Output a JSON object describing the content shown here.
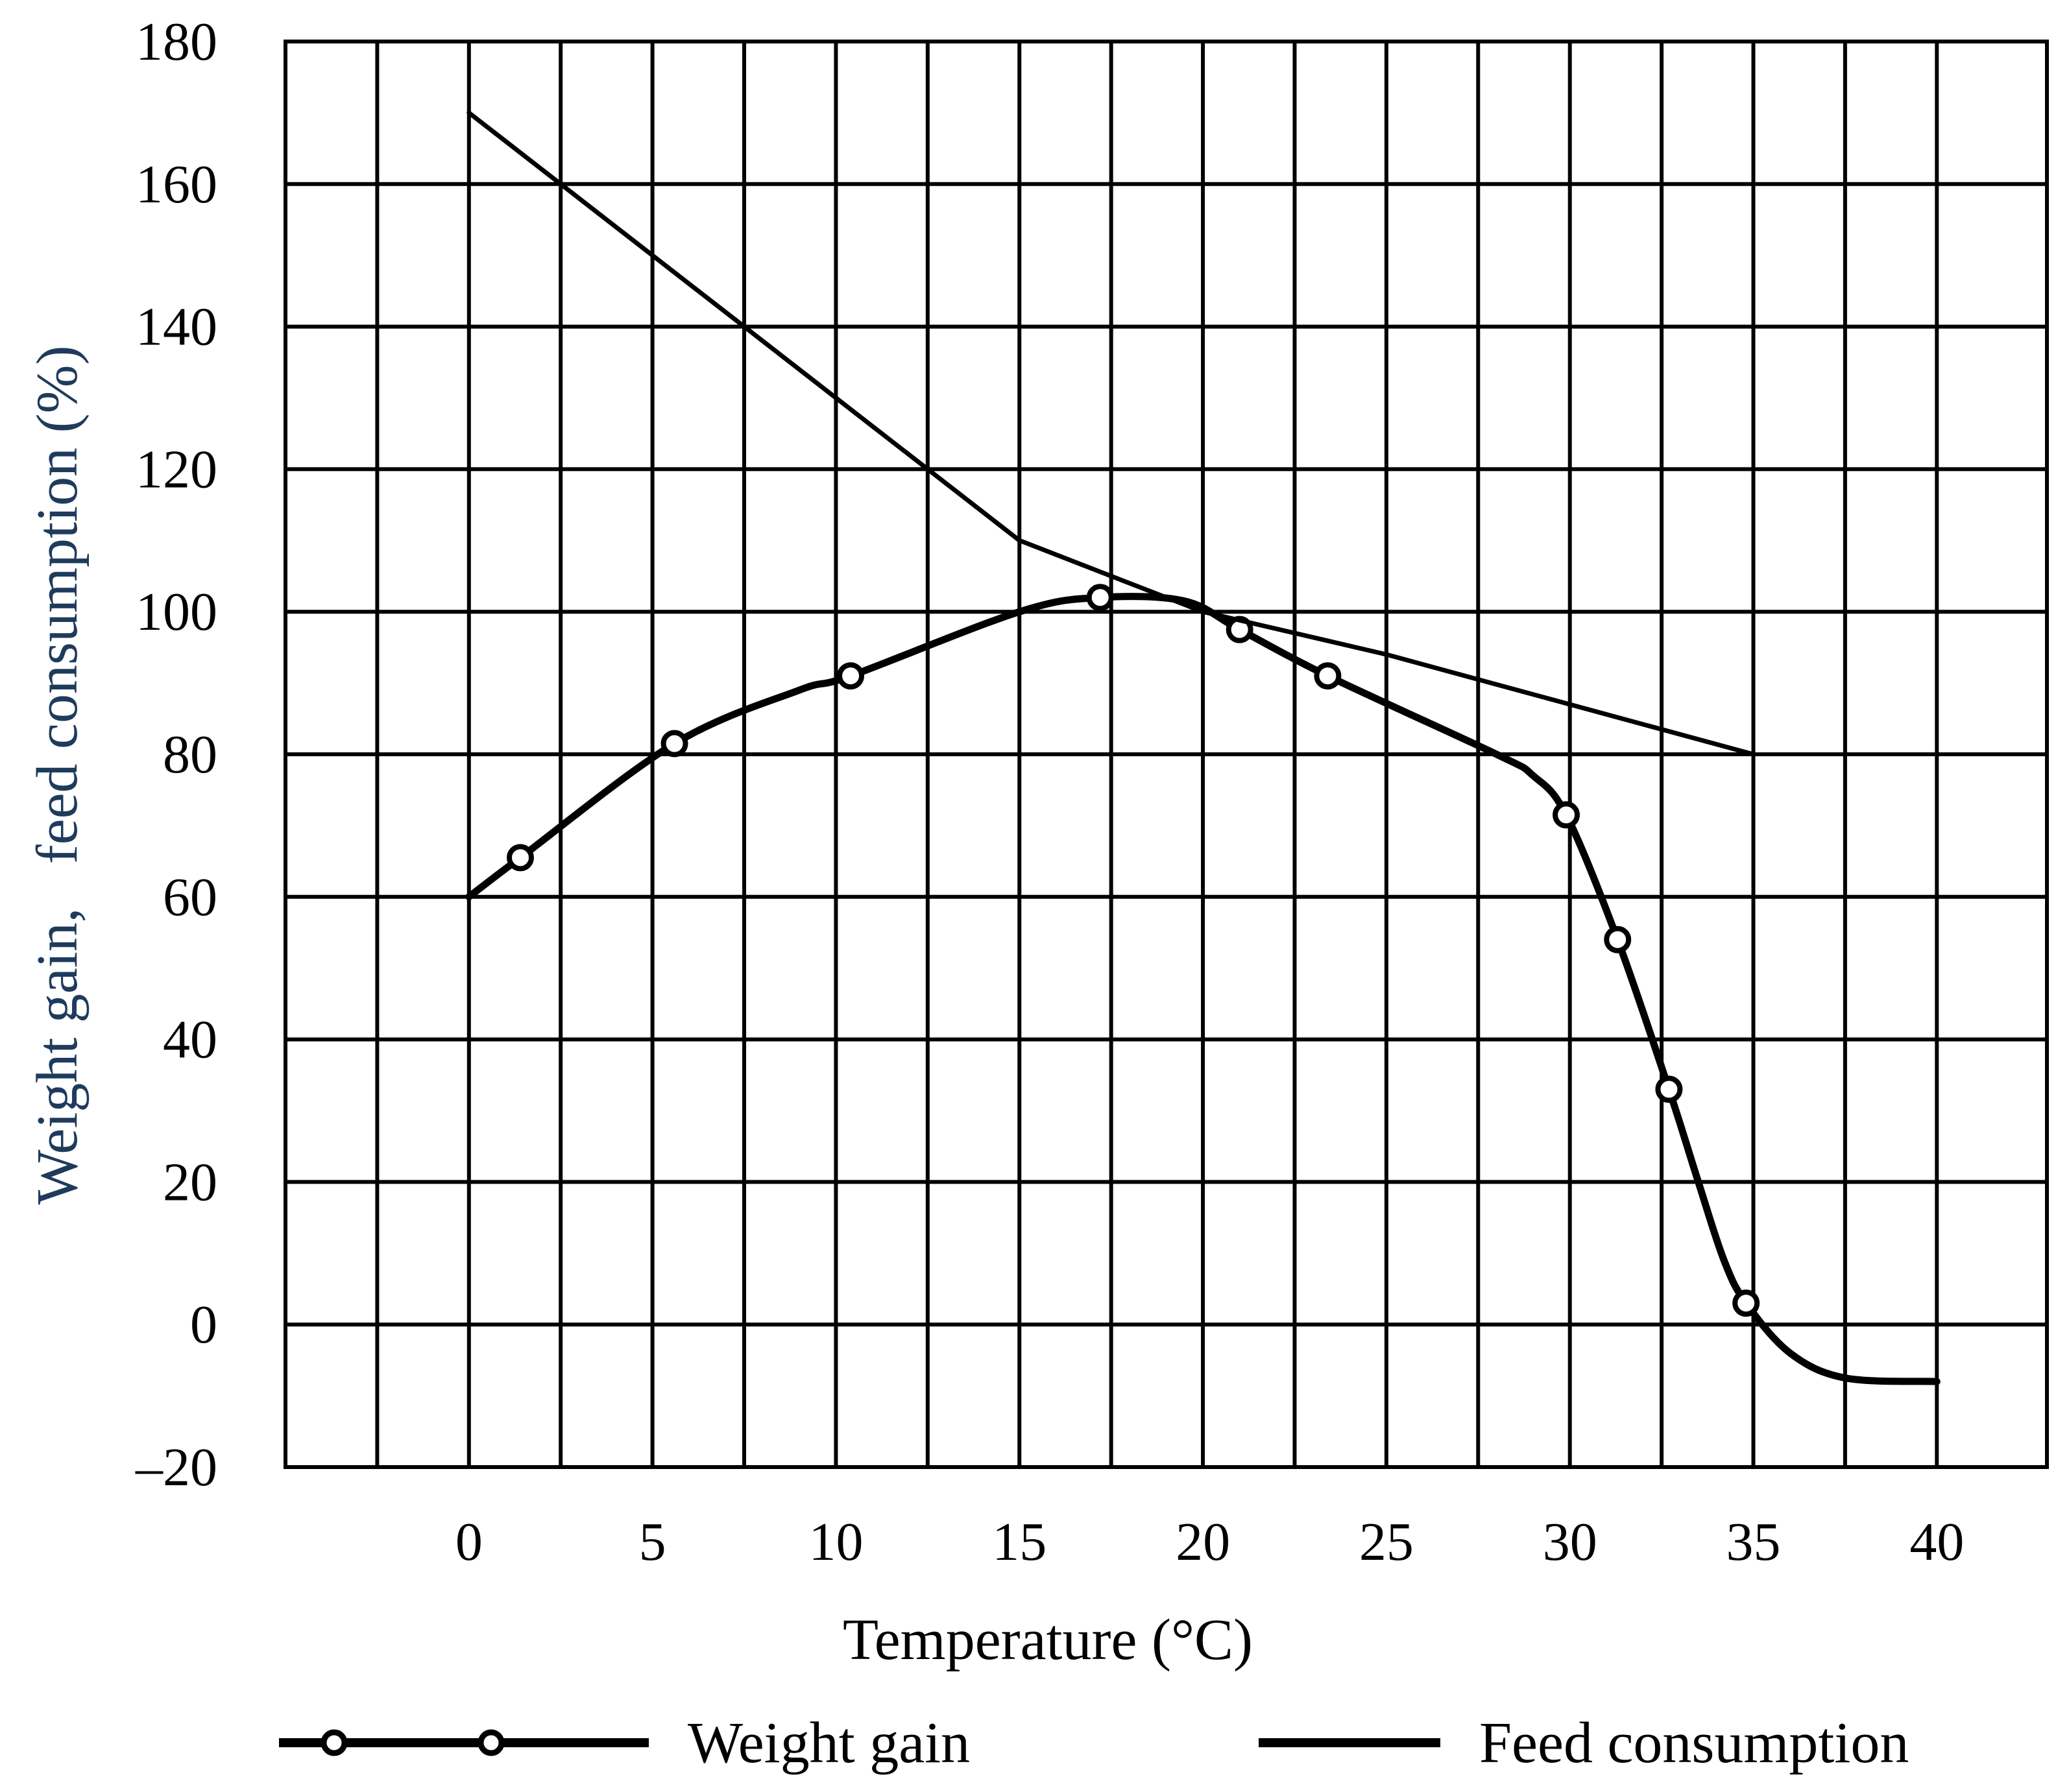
{
  "chart_data": {
    "type": "line",
    "title": "",
    "xlabel": "Temperature (°C)",
    "ylabel": "Weight gain,   feed consumption (%)",
    "xlim": [
      -5,
      43
    ],
    "ylim": [
      -20,
      180
    ],
    "x_ticks": [
      0,
      5,
      10,
      15,
      20,
      25,
      30,
      35,
      40
    ],
    "y_ticks": [
      180,
      160,
      140,
      120,
      100,
      80,
      60,
      40,
      20,
      0,
      -20
    ],
    "x_tick_labels": [
      "0",
      "5",
      "10",
      "15",
      "20",
      "25",
      "30",
      "35",
      "40"
    ],
    "y_tick_labels": [
      "180",
      "160",
      "140",
      "120",
      "100",
      "80",
      "60",
      "40",
      "20",
      "0",
      "–20"
    ],
    "x_grid": [
      -2.5,
      0,
      2.5,
      5,
      7.5,
      10,
      12.5,
      15,
      17.5,
      20,
      22.5,
      25,
      27.5,
      30,
      32.5,
      35,
      37.5,
      40
    ],
    "y_grid": [
      160,
      140,
      120,
      100,
      80,
      60,
      40,
      20,
      0
    ],
    "grid": true,
    "legend_position": "bottom",
    "series": [
      {
        "name": "Weight gain",
        "style": "line-with-circle-markers",
        "x": [
          0,
          1.4,
          5.6,
          9,
          10.4,
          15,
          17.2,
          19.5,
          21,
          23.4,
          28,
          29,
          29.9,
          31.3,
          32.7,
          33.5,
          34.2,
          34.8,
          36,
          37.5,
          40
        ],
        "y": [
          60,
          65.5,
          81.5,
          89,
          91,
          100,
          102,
          101.5,
          97.5,
          91,
          80,
          77,
          71.5,
          54,
          33,
          20,
          9,
          3,
          -4,
          -7.5,
          -8
        ],
        "markers_x": [
          1.4,
          5.6,
          10.4,
          17.2,
          21,
          23.4,
          29.9,
          31.3,
          32.7,
          34.8
        ],
        "markers_y": [
          65.5,
          81.5,
          91,
          102,
          97.5,
          91,
          71.5,
          54,
          33,
          3
        ]
      },
      {
        "name": "Feed consumption",
        "style": "line",
        "x": [
          0,
          15,
          20,
          25,
          30,
          35
        ],
        "y": [
          170,
          110,
          100,
          94,
          87,
          80
        ]
      }
    ]
  },
  "colors": {
    "line": "#000000",
    "ylabel_first": "#1f3b5c",
    "ylabel_second": "#1f3b5c",
    "xlabel": "#000000",
    "background": "#ffffff"
  }
}
